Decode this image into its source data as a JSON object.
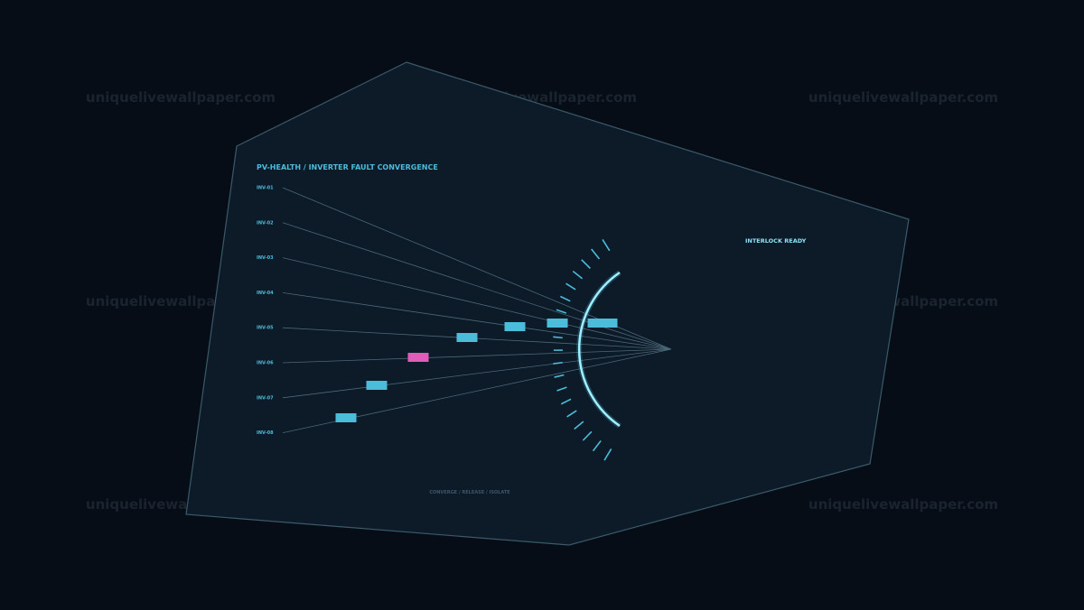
{
  "watermark": "uniquelivewallpaper.com",
  "title": "PV-HEALTH / INVERTER FAULT CONVERGENCE",
  "status": "INTERLOCK READY",
  "footer": "CONVERGE / RELEASE / ISOLATE",
  "inverters": [
    {
      "label": "INV-01",
      "color": "#4bbcd9"
    },
    {
      "label": "INV-02",
      "color": "#4bbcd9"
    },
    {
      "label": "INV-03",
      "color": "#4bbcd9"
    },
    {
      "label": "INV-04",
      "color": "#4bbcd9"
    },
    {
      "label": "INV-05",
      "color": "#4bbcd9"
    },
    {
      "label": "INV-06",
      "color": "#e05cb8"
    },
    {
      "label": "INV-07",
      "color": "#4bbcd9"
    },
    {
      "label": "INV-08",
      "color": "#4bbcd9"
    }
  ]
}
